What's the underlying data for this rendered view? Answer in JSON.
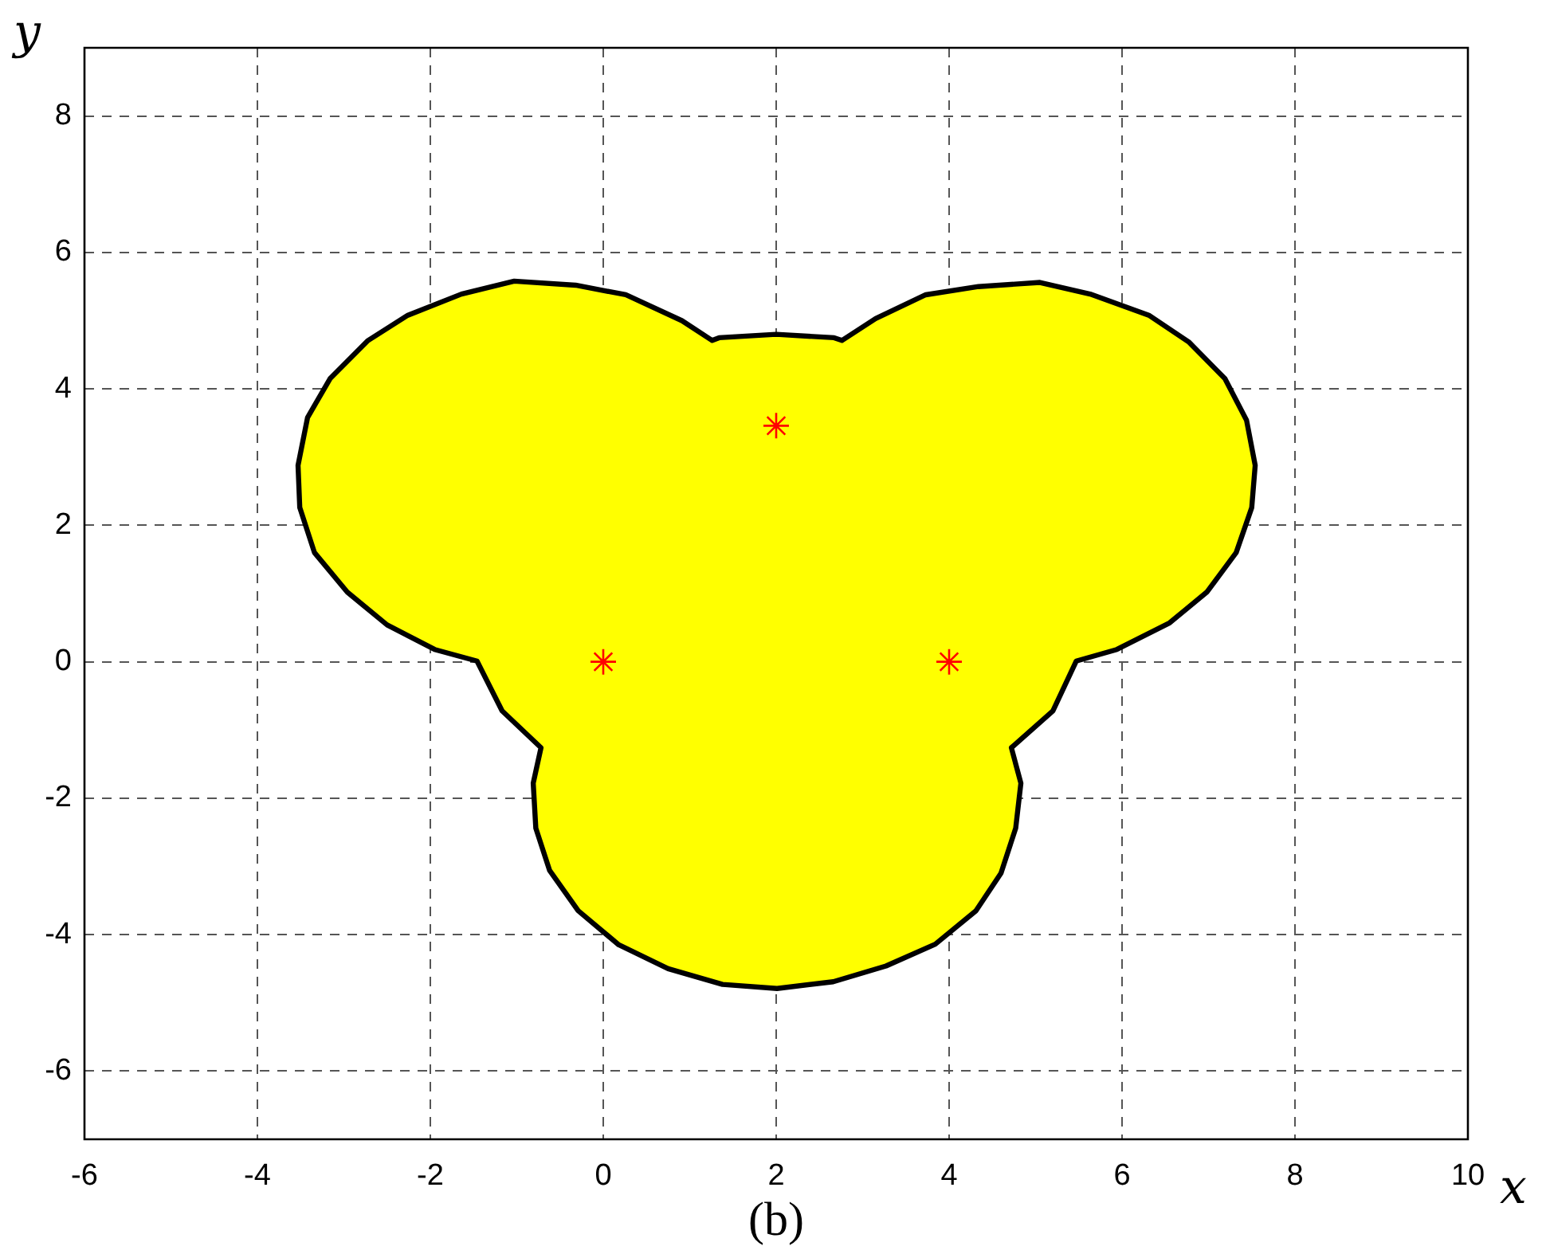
{
  "chart_data": {
    "type": "area",
    "xlabel": "x",
    "ylabel": "y",
    "annotations": [
      "(b)"
    ],
    "xlim": [
      -6,
      10
    ],
    "xticks": [
      -6,
      -4,
      -2,
      0,
      2,
      4,
      6,
      8,
      10
    ],
    "ylim": [
      -7,
      9
    ],
    "yticks": [
      -6,
      -4,
      -2,
      0,
      2,
      4,
      6,
      8
    ],
    "grid": true,
    "series": [
      {
        "color": "#ffff00",
        "x": [
          2.0,
          2.67,
          2.76,
          3.15,
          3.73,
          4.34,
          5.05,
          5.63,
          6.31,
          6.77,
          7.19,
          7.44,
          7.54,
          7.5,
          7.32,
          6.98,
          6.55,
          5.94,
          5.47,
          5.2,
          4.72,
          4.83,
          4.77,
          4.6,
          4.31,
          3.84,
          3.27,
          2.66,
          2.01,
          1.38,
          0.75,
          0.18,
          -0.29,
          -0.62,
          -0.78,
          -0.81,
          -0.72,
          -1.17,
          -1.46,
          -1.95,
          -2.5,
          -2.96,
          -3.34,
          -3.51,
          -3.53,
          -3.42,
          -3.16,
          -2.72,
          -2.26,
          -1.64,
          -1.03,
          -0.32,
          0.26,
          0.91,
          1.26,
          1.34
        ],
        "values": [
          4.8,
          4.75,
          4.71,
          5.03,
          5.38,
          5.5,
          5.56,
          5.39,
          5.08,
          4.69,
          4.15,
          3.54,
          2.88,
          2.26,
          1.6,
          1.02,
          0.57,
          0.18,
          0.01,
          -0.72,
          -1.26,
          -1.78,
          -2.44,
          -3.1,
          -3.65,
          -4.14,
          -4.46,
          -4.69,
          -4.79,
          -4.73,
          -4.5,
          -4.15,
          -3.65,
          -3.06,
          -2.44,
          -1.78,
          -1.26,
          -0.72,
          0.01,
          0.18,
          0.54,
          1.02,
          1.6,
          2.26,
          2.88,
          3.58,
          4.15,
          4.71,
          5.08,
          5.39,
          5.58,
          5.52,
          5.38,
          5.0,
          4.71,
          4.75
        ]
      },
      {
        "type": "scatter",
        "color": "#ff0000",
        "marker": "cross",
        "x": [
          0,
          2,
          4
        ],
        "values": [
          0,
          3.46,
          0
        ]
      }
    ]
  }
}
